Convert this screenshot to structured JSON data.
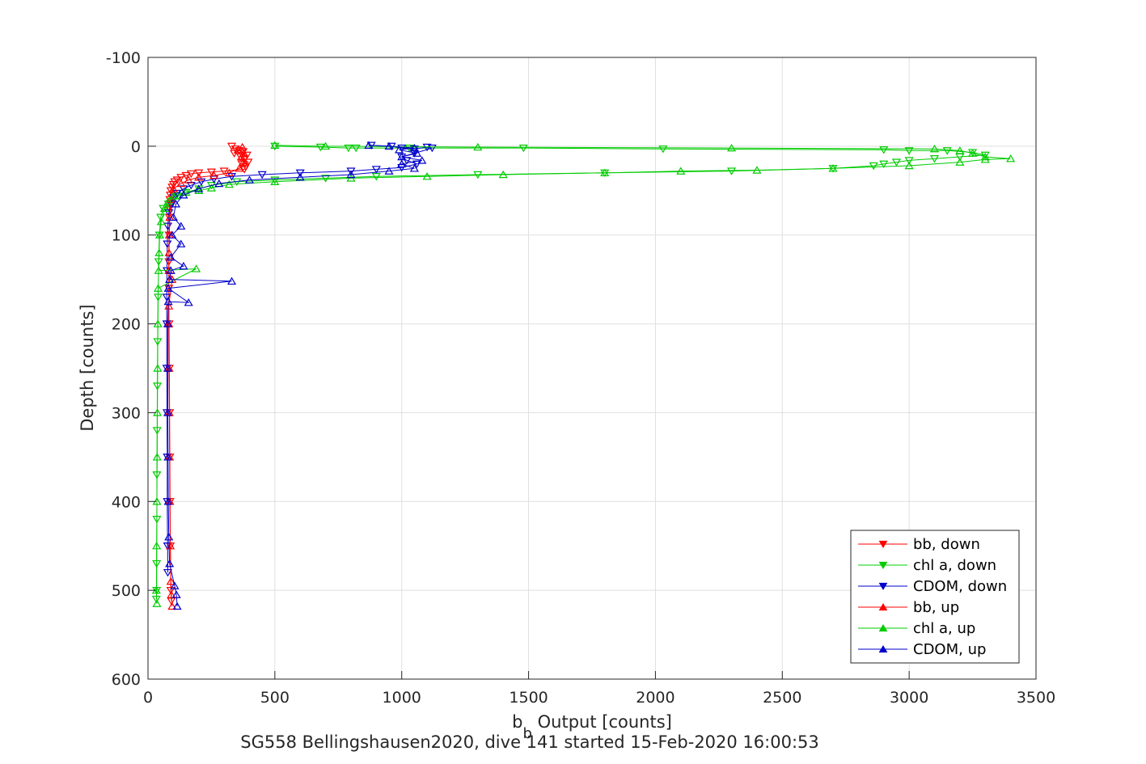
{
  "chart_data": {
    "type": "line",
    "title": "",
    "caption": "SG558 Bellingshausen2020, dive 141 started 15-Feb-2020 16:00:53",
    "xlabel_main": "b",
    "xlabel_sub": "b",
    "xlabel_rest": " Output [counts]",
    "ylabel": "Depth [counts]",
    "xlim": [
      0,
      3500
    ],
    "ylim": [
      -100,
      600
    ],
    "y_reversed": true,
    "xticks": [
      "0",
      "500",
      "1000",
      "1500",
      "2000",
      "2500",
      "3000",
      "3500"
    ],
    "yticks": [
      "-100",
      "0",
      "100",
      "200",
      "300",
      "400",
      "500",
      "600"
    ],
    "grid": true,
    "legend_position": "bottom-right",
    "series": [
      {
        "name": "bb, down",
        "color": "#ff0000",
        "marker": "triangle-down",
        "points": [
          [
            330,
            0
          ],
          [
            345,
            3
          ],
          [
            360,
            5
          ],
          [
            340,
            8
          ],
          [
            375,
            6
          ],
          [
            390,
            10
          ],
          [
            365,
            12
          ],
          [
            380,
            15
          ],
          [
            395,
            18
          ],
          [
            370,
            20
          ],
          [
            385,
            23
          ],
          [
            380,
            26
          ],
          [
            300,
            28
          ],
          [
            250,
            29
          ],
          [
            200,
            30
          ],
          [
            170,
            31
          ],
          [
            150,
            33
          ],
          [
            130,
            35
          ],
          [
            115,
            38
          ],
          [
            105,
            40
          ],
          [
            100,
            43
          ],
          [
            95,
            46
          ],
          [
            90,
            50
          ],
          [
            88,
            55
          ],
          [
            86,
            60
          ],
          [
            85,
            70
          ],
          [
            84,
            80
          ],
          [
            83,
            100
          ],
          [
            82,
            130
          ],
          [
            82,
            160
          ],
          [
            83,
            200
          ],
          [
            84,
            250
          ],
          [
            85,
            300
          ],
          [
            86,
            350
          ],
          [
            87,
            400
          ],
          [
            88,
            450
          ],
          [
            90,
            500
          ],
          [
            92,
            512
          ]
        ]
      },
      {
        "name": "chl a, down",
        "color": "#00cc00",
        "marker": "triangle-down",
        "points": [
          [
            500,
            0
          ],
          [
            680,
            1
          ],
          [
            790,
            2
          ],
          [
            820,
            2
          ],
          [
            1030,
            2
          ],
          [
            1480,
            2
          ],
          [
            2030,
            3
          ],
          [
            2900,
            4
          ],
          [
            3000,
            5
          ],
          [
            3150,
            5
          ],
          [
            3250,
            7
          ],
          [
            3300,
            10
          ],
          [
            3200,
            12
          ],
          [
            3100,
            14
          ],
          [
            3000,
            16
          ],
          [
            2950,
            18
          ],
          [
            2900,
            20
          ],
          [
            2860,
            22
          ],
          [
            2700,
            25
          ],
          [
            2300,
            28
          ],
          [
            1800,
            30
          ],
          [
            1300,
            32
          ],
          [
            900,
            34
          ],
          [
            700,
            36
          ],
          [
            500,
            38
          ],
          [
            350,
            40
          ],
          [
            250,
            44
          ],
          [
            200,
            48
          ],
          [
            150,
            52
          ],
          [
            120,
            56
          ],
          [
            100,
            60
          ],
          [
            80,
            65
          ],
          [
            60,
            70
          ],
          [
            50,
            80
          ],
          [
            45,
            100
          ],
          [
            42,
            130
          ],
          [
            40,
            170
          ],
          [
            38,
            220
          ],
          [
            37,
            270
          ],
          [
            36,
            320
          ],
          [
            35,
            370
          ],
          [
            35,
            420
          ],
          [
            34,
            470
          ],
          [
            34,
            500
          ],
          [
            33,
            510
          ]
        ]
      },
      {
        "name": "CDOM, down",
        "color": "#0000cc",
        "marker": "triangle-down",
        "points": [
          [
            880,
            -1
          ],
          [
            960,
            0
          ],
          [
            1000,
            2
          ],
          [
            1050,
            3
          ],
          [
            1100,
            1
          ],
          [
            1120,
            2
          ],
          [
            1050,
            8
          ],
          [
            1000,
            12
          ],
          [
            1020,
            16
          ],
          [
            1060,
            20
          ],
          [
            1000,
            24
          ],
          [
            900,
            26
          ],
          [
            800,
            28
          ],
          [
            600,
            30
          ],
          [
            450,
            32
          ],
          [
            330,
            34
          ],
          [
            260,
            37
          ],
          [
            210,
            40
          ],
          [
            170,
            44
          ],
          [
            140,
            48
          ],
          [
            115,
            53
          ],
          [
            100,
            58
          ],
          [
            90,
            65
          ],
          [
            82,
            75
          ],
          [
            78,
            90
          ],
          [
            76,
            110
          ],
          [
            75,
            140
          ],
          [
            74,
            170
          ],
          [
            74,
            200
          ],
          [
            74,
            250
          ],
          [
            75,
            300
          ],
          [
            76,
            350
          ],
          [
            76,
            400
          ],
          [
            77,
            450
          ],
          [
            78,
            480
          ]
        ]
      },
      {
        "name": "bb, up",
        "color": "#ff0000",
        "marker": "triangle-up",
        "points": [
          [
            95,
            518
          ],
          [
            92,
            505
          ],
          [
            90,
            490
          ],
          [
            88,
            450
          ],
          [
            86,
            400
          ],
          [
            85,
            350
          ],
          [
            84,
            300
          ],
          [
            83,
            250
          ],
          [
            82,
            200
          ],
          [
            82,
            180
          ],
          [
            95,
            150
          ],
          [
            82,
            140
          ],
          [
            83,
            120
          ],
          [
            84,
            100
          ],
          [
            86,
            80
          ],
          [
            90,
            60
          ],
          [
            100,
            48
          ],
          [
            130,
            42
          ],
          [
            160,
            38
          ],
          [
            200,
            35
          ],
          [
            260,
            33
          ],
          [
            320,
            30
          ],
          [
            360,
            25
          ],
          [
            375,
            18
          ],
          [
            368,
            12
          ],
          [
            378,
            8
          ],
          [
            355,
            4
          ],
          [
            372,
            1
          ]
        ]
      },
      {
        "name": "chl a, up",
        "color": "#00cc00",
        "marker": "triangle-up",
        "points": [
          [
            35,
            515
          ],
          [
            33,
            500
          ],
          [
            34,
            450
          ],
          [
            35,
            400
          ],
          [
            36,
            350
          ],
          [
            37,
            300
          ],
          [
            38,
            250
          ],
          [
            39,
            200
          ],
          [
            40,
            160
          ],
          [
            190,
            138
          ],
          [
            42,
            140
          ],
          [
            44,
            120
          ],
          [
            46,
            100
          ],
          [
            52,
            85
          ],
          [
            65,
            70
          ],
          [
            80,
            62
          ],
          [
            100,
            56
          ],
          [
            150,
            52
          ],
          [
            200,
            50
          ],
          [
            250,
            47
          ],
          [
            320,
            43
          ],
          [
            500,
            40
          ],
          [
            800,
            36
          ],
          [
            1100,
            34
          ],
          [
            1400,
            32
          ],
          [
            1800,
            30
          ],
          [
            2100,
            28
          ],
          [
            2400,
            27
          ],
          [
            2700,
            25
          ],
          [
            3000,
            22
          ],
          [
            3200,
            18
          ],
          [
            3300,
            15
          ],
          [
            3400,
            14
          ],
          [
            3300,
            12
          ],
          [
            3250,
            8
          ],
          [
            3200,
            5
          ],
          [
            3100,
            3
          ],
          [
            2300,
            2
          ],
          [
            1300,
            1
          ],
          [
            700,
            0
          ],
          [
            500,
            -1
          ]
        ]
      },
      {
        "name": "CDOM, up",
        "color": "#0000cc",
        "marker": "triangle-up",
        "points": [
          [
            115,
            518
          ],
          [
            112,
            505
          ],
          [
            105,
            495
          ],
          [
            85,
            470
          ],
          [
            82,
            440
          ],
          [
            80,
            400
          ],
          [
            79,
            350
          ],
          [
            78,
            300
          ],
          [
            78,
            250
          ],
          [
            78,
            200
          ],
          [
            80,
            175
          ],
          [
            160,
            176
          ],
          [
            80,
            160
          ],
          [
            330,
            152
          ],
          [
            85,
            150
          ],
          [
            90,
            140
          ],
          [
            140,
            135
          ],
          [
            90,
            125
          ],
          [
            130,
            110
          ],
          [
            95,
            100
          ],
          [
            130,
            90
          ],
          [
            100,
            80
          ],
          [
            110,
            65
          ],
          [
            140,
            55
          ],
          [
            200,
            48
          ],
          [
            280,
            42
          ],
          [
            400,
            38
          ],
          [
            600,
            35
          ],
          [
            800,
            32
          ],
          [
            950,
            28
          ],
          [
            1050,
            25
          ],
          [
            1000,
            20
          ],
          [
            1080,
            16
          ],
          [
            1000,
            12
          ],
          [
            1060,
            8
          ],
          [
            990,
            4
          ],
          [
            1050,
            2
          ],
          [
            950,
            0
          ],
          [
            870,
            -1
          ]
        ]
      }
    ]
  }
}
